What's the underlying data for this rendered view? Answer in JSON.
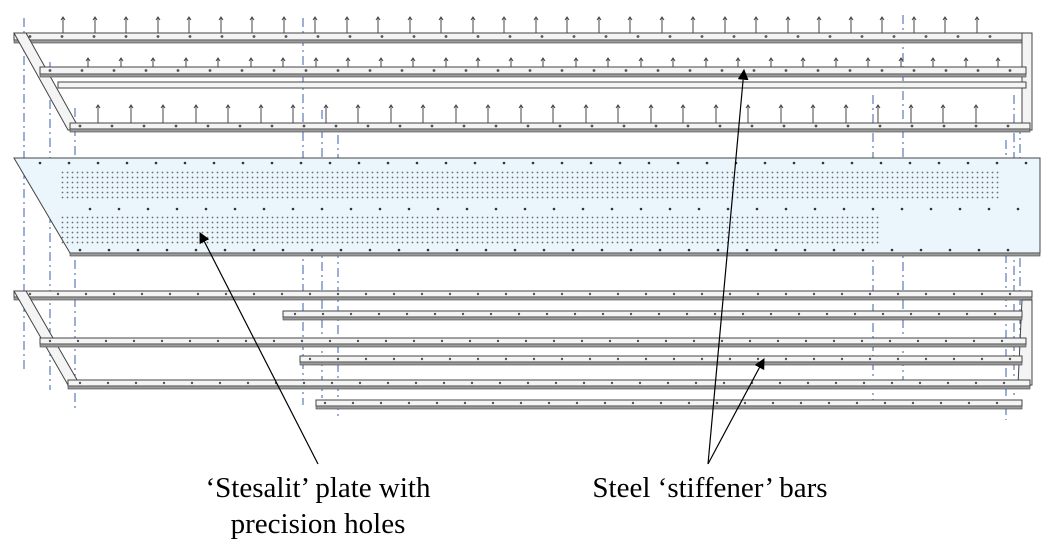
{
  "labels": {
    "plate_line1": "‘Stesalit’ plate with",
    "plate_line2": "precision holes",
    "bars": "Steel ‘stiffener’ bars"
  },
  "colors": {
    "outline": "#444444",
    "bar_top": "#f4f4f4",
    "bar_side": "#9a9a9a",
    "plate_fill": "#eaf6fb",
    "plate_holes": "#555555",
    "centerline": "#3b5fa8",
    "arrow": "#000000"
  }
}
